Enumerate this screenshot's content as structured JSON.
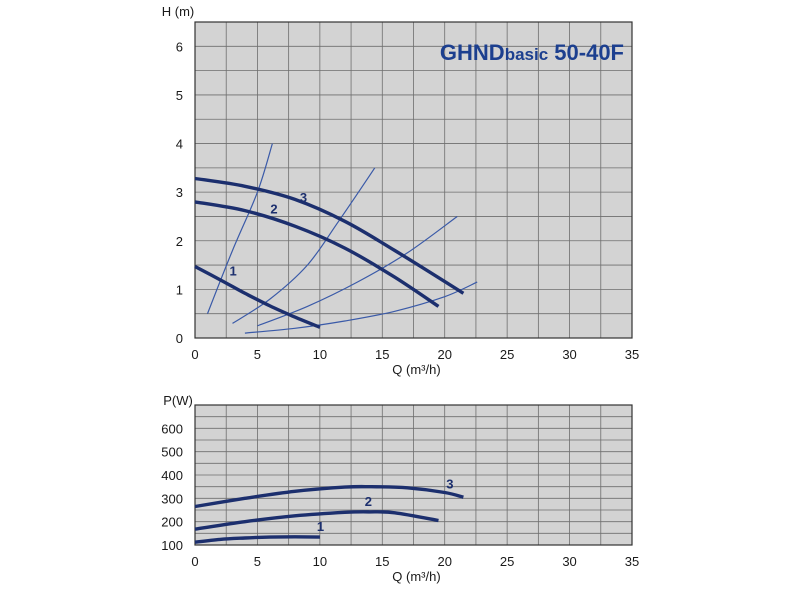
{
  "chart_data": [
    {
      "type": "line",
      "title": "GHNDbasic 50-40F",
      "title_parts": [
        "GHND",
        "basic",
        " 50-40F"
      ],
      "xlabel": "Q (m³/h)",
      "ylabel": "H (m)",
      "xlim": [
        0,
        35
      ],
      "ylim": [
        0,
        6.5
      ],
      "x_ticks": [
        0,
        5,
        10,
        15,
        20,
        25,
        30,
        35
      ],
      "y_ticks": [
        0,
        1,
        2,
        3,
        4,
        5,
        6
      ],
      "grid": true,
      "background": "#d3d3d3",
      "series": [
        {
          "name": "1",
          "color": "#1c2f6e",
          "points": [
            [
              0,
              1.47
            ],
            [
              2,
              1.2
            ],
            [
              4,
              0.92
            ],
            [
              6,
              0.66
            ],
            [
              8,
              0.43
            ],
            [
              10,
              0.22
            ]
          ]
        },
        {
          "name": "2",
          "color": "#1c2f6e",
          "points": [
            [
              0,
              2.8
            ],
            [
              4,
              2.62
            ],
            [
              8,
              2.3
            ],
            [
              12,
              1.85
            ],
            [
              16,
              1.25
            ],
            [
              19.5,
              0.65
            ]
          ]
        },
        {
          "name": "3",
          "color": "#1c2f6e",
          "points": [
            [
              0,
              3.28
            ],
            [
              4,
              3.12
            ],
            [
              8,
              2.85
            ],
            [
              12,
              2.4
            ],
            [
              16,
              1.8
            ],
            [
              21.5,
              0.92
            ]
          ]
        }
      ],
      "system_curves": [
        {
          "color": "#3a5aa8",
          "points": [
            [
              1,
              0.5
            ],
            [
              3,
              1.8
            ],
            [
              5,
              3.0
            ],
            [
              6.2,
              4.0
            ]
          ]
        },
        {
          "color": "#3a5aa8",
          "points": [
            [
              3,
              0.3
            ],
            [
              6,
              0.8
            ],
            [
              9,
              1.5
            ],
            [
              11.5,
              2.4
            ],
            [
              14.4,
              3.5
            ]
          ]
        },
        {
          "color": "#3a5aa8",
          "points": [
            [
              5,
              0.25
            ],
            [
              9,
              0.65
            ],
            [
              13,
              1.15
            ],
            [
              17,
              1.75
            ],
            [
              21,
              2.5
            ]
          ]
        },
        {
          "color": "#3a5aa8",
          "points": [
            [
              4,
              0.1
            ],
            [
              8,
              0.2
            ],
            [
              12,
              0.35
            ],
            [
              16,
              0.55
            ],
            [
              20,
              0.85
            ],
            [
              22.6,
              1.15
            ]
          ]
        }
      ]
    },
    {
      "type": "line",
      "title": "",
      "xlabel": "Q (m³/h)",
      "ylabel": "P(W)",
      "xlim": [
        0,
        35
      ],
      "ylim": [
        100,
        700
      ],
      "x_ticks": [
        0,
        5,
        10,
        15,
        20,
        25,
        30,
        35
      ],
      "y_ticks": [
        100,
        200,
        300,
        400,
        500,
        600
      ],
      "grid": true,
      "background": "#d3d3d3",
      "series": [
        {
          "name": "1",
          "color": "#1c2f6e",
          "points": [
            [
              0,
              112
            ],
            [
              2,
              124
            ],
            [
              4,
              130
            ],
            [
              6,
              134
            ],
            [
              8,
              135
            ],
            [
              10,
              134
            ]
          ]
        },
        {
          "name": "2",
          "color": "#1c2f6e",
          "points": [
            [
              0,
              168
            ],
            [
              4,
              200
            ],
            [
              8,
              225
            ],
            [
              12,
              240
            ],
            [
              14,
              242
            ],
            [
              16,
              238
            ],
            [
              19.5,
              205
            ]
          ]
        },
        {
          "name": "3",
          "color": "#1c2f6e",
          "points": [
            [
              0,
              265
            ],
            [
              4,
              300
            ],
            [
              8,
              330
            ],
            [
              12,
              348
            ],
            [
              14,
              350
            ],
            [
              17,
              345
            ],
            [
              20,
              325
            ],
            [
              21.5,
              305
            ]
          ]
        }
      ]
    }
  ]
}
